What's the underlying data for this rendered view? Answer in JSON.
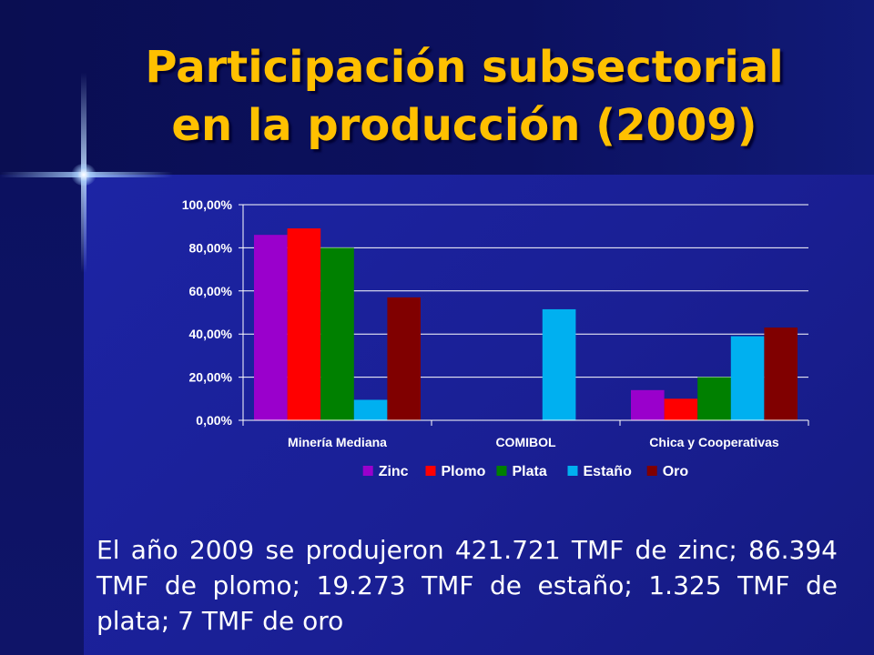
{
  "slide": {
    "title_line1": "Participación subsectorial",
    "title_line2": "en la producción (2009)",
    "caption": "El año 2009 se produjeron 421.721 TMF de zinc; 86.394 TMF de plomo; 19.273 TMF de estaño; 1.325 TMF de plata; 7 TMF de oro"
  },
  "colors": {
    "title": "#ffc000",
    "background": "#1a1f8c",
    "Zinc": "#9a00cc",
    "Plomo": "#ff0000",
    "Plata": "#008000",
    "Estaño": "#00b0f0",
    "Oro": "#800000"
  },
  "chart_data": {
    "type": "bar",
    "categories": [
      "Minería Mediana",
      "COMIBOL",
      "Chica y Cooperativas"
    ],
    "series": [
      {
        "name": "Zinc",
        "values": [
          86,
          0,
          14
        ]
      },
      {
        "name": "Plomo",
        "values": [
          89,
          0,
          10
        ]
      },
      {
        "name": "Plata",
        "values": [
          80,
          0,
          20
        ]
      },
      {
        "name": "Estaño",
        "values": [
          9.5,
          51.5,
          39
        ]
      },
      {
        "name": "Oro",
        "values": [
          57,
          0,
          43
        ]
      }
    ],
    "yticks": [
      "0,00%",
      "20,00%",
      "40,00%",
      "60,00%",
      "80,00%",
      "100,00%"
    ],
    "ylim": [
      0,
      100
    ],
    "grid": true,
    "legend": "bottom",
    "title": "",
    "xlabel": "",
    "ylabel": ""
  }
}
